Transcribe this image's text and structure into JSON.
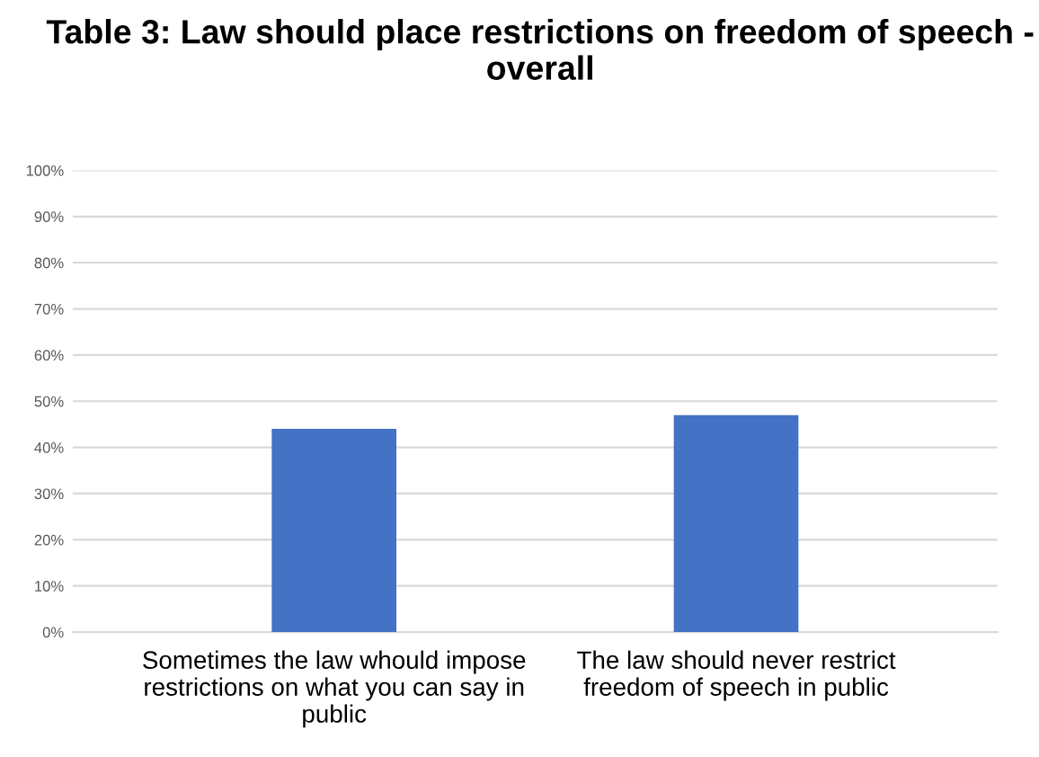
{
  "chart_data": {
    "type": "bar",
    "title": "Table 3: Law should place restrictions on freedom of speech - overall",
    "categories": [
      "Sometimes the law whould impose restrictions on what you can say in public",
      "The law should never restrict freedom of speech in public"
    ],
    "values": [
      44,
      47
    ],
    "color": "#4472c4",
    "ylim": [
      0,
      100
    ],
    "yticks": [
      {
        "value": 0,
        "label": "0%"
      },
      {
        "value": 10,
        "label": "10%"
      },
      {
        "value": 20,
        "label": "20%"
      },
      {
        "value": 30,
        "label": "30%"
      },
      {
        "value": 40,
        "label": "40%"
      },
      {
        "value": 50,
        "label": "50%"
      },
      {
        "value": 60,
        "label": "60%"
      },
      {
        "value": 70,
        "label": "70%"
      },
      {
        "value": 80,
        "label": "80%"
      },
      {
        "value": 90,
        "label": "90%"
      },
      {
        "value": 100,
        "label": "100%"
      }
    ],
    "grid": "y",
    "legend": false
  }
}
